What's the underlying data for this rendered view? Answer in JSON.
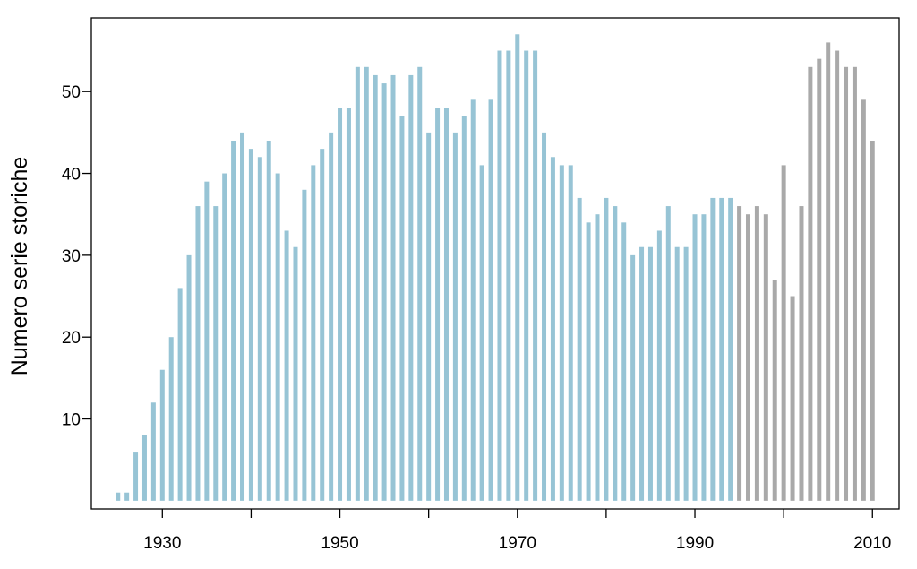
{
  "chart_data": {
    "type": "bar",
    "title": "",
    "xlabel": "",
    "ylabel": "Numero serie storiche",
    "x": [
      1925,
      1926,
      1927,
      1928,
      1929,
      1930,
      1931,
      1932,
      1933,
      1934,
      1935,
      1936,
      1937,
      1938,
      1939,
      1940,
      1941,
      1942,
      1943,
      1944,
      1945,
      1946,
      1947,
      1948,
      1949,
      1950,
      1951,
      1952,
      1953,
      1954,
      1955,
      1956,
      1957,
      1958,
      1959,
      1960,
      1961,
      1962,
      1963,
      1964,
      1965,
      1966,
      1967,
      1968,
      1969,
      1970,
      1971,
      1972,
      1973,
      1974,
      1975,
      1976,
      1977,
      1978,
      1979,
      1980,
      1981,
      1982,
      1983,
      1984,
      1985,
      1986,
      1987,
      1988,
      1989,
      1990,
      1991,
      1992,
      1993,
      1994,
      1995,
      1996,
      1997,
      1998,
      1999,
      2000,
      2001,
      2002,
      2003,
      2004,
      2005,
      2006,
      2007,
      2008,
      2009,
      2010
    ],
    "values": [
      1,
      1,
      6,
      8,
      12,
      16,
      20,
      26,
      30,
      36,
      39,
      36,
      40,
      44,
      45,
      43,
      42,
      44,
      40,
      33,
      31,
      38,
      41,
      43,
      45,
      48,
      48,
      53,
      53,
      52,
      51,
      52,
      47,
      52,
      53,
      45,
      48,
      48,
      45,
      47,
      49,
      41,
      49,
      55,
      55,
      57,
      55,
      55,
      45,
      42,
      41,
      41,
      37,
      34,
      35,
      37,
      36,
      34,
      30,
      31,
      31,
      33,
      36,
      31,
      31,
      35,
      35,
      37,
      37,
      37,
      36,
      35,
      36,
      35,
      27,
      41,
      25,
      36,
      53,
      54,
      56,
      55,
      53,
      53,
      49,
      44
    ],
    "series_split_year": 1995,
    "colors": {
      "early": "#97c4d5",
      "late": "#a9a9a9"
    },
    "xlim": [
      1922,
      2013
    ],
    "ylim": [
      -1,
      59
    ],
    "xticks": [
      1930,
      1940,
      1950,
      1960,
      1970,
      1980,
      1990,
      2000,
      2010
    ],
    "xtick_labels": [
      "1930",
      "1950",
      "1970",
      "1990",
      "2010"
    ],
    "yticks": [
      10,
      20,
      30,
      40,
      50
    ],
    "ytick_labels": [
      "10",
      "20",
      "30",
      "40",
      "50"
    ],
    "grid": false
  }
}
